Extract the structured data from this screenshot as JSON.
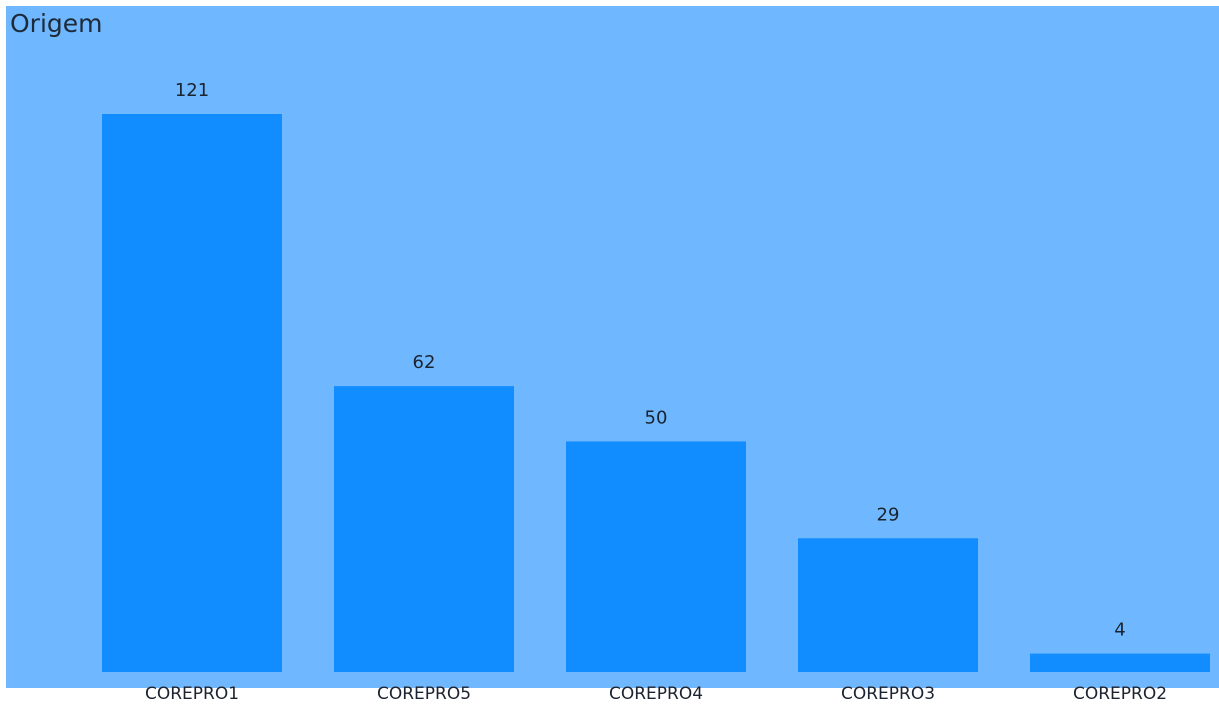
{
  "chart_data": {
    "type": "bar",
    "title": "Origem",
    "categories": [
      "COREPRO1",
      "COREPRO5",
      "COREPRO4",
      "COREPRO3",
      "COREPRO2"
    ],
    "values": [
      121,
      62,
      50,
      29,
      4
    ],
    "ylim": [
      0,
      121
    ],
    "grid": false,
    "legend": "none",
    "bar_color": "#118dff",
    "background_color": "#6fb8ff"
  }
}
